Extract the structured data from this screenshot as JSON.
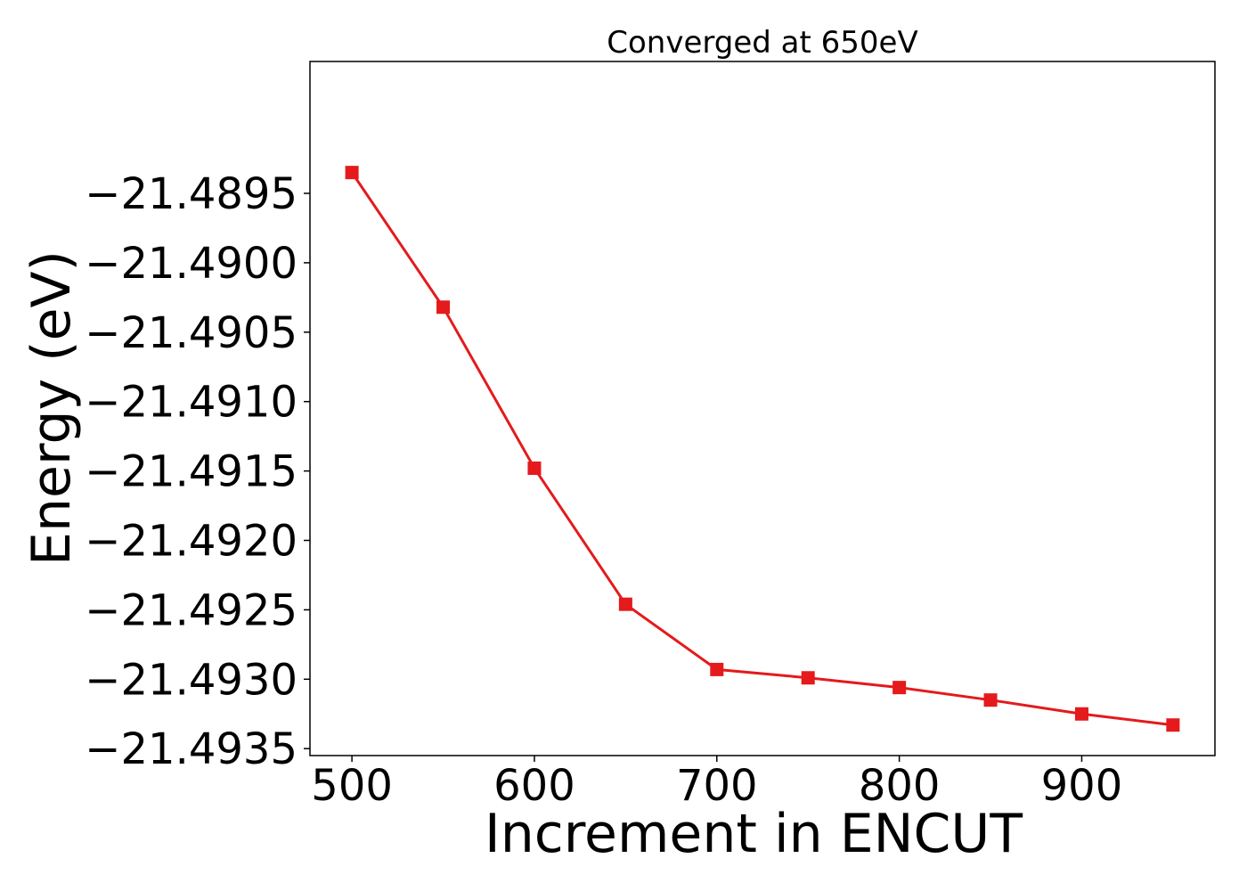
{
  "chart_data": {
    "type": "line",
    "title": "Converged at 650eV",
    "xlabel": "Increment in ENCUT",
    "ylabel": "Energy (eV)",
    "xlim": [
      477,
      973
    ],
    "ylim": [
      -21.49355,
      -21.48855
    ],
    "xticks": [
      500,
      600,
      700,
      800,
      900
    ],
    "xtick_labels": [
      "500",
      "600",
      "700",
      "800",
      "900"
    ],
    "yticks": [
      -21.4895,
      -21.49,
      -21.4905,
      -21.491,
      -21.4915,
      -21.492,
      -21.4925,
      -21.493,
      -21.4935
    ],
    "ytick_labels": [
      "−21.4895",
      "−21.4900",
      "−21.4905",
      "−21.4910",
      "−21.4915",
      "−21.4920",
      "−21.4925",
      "−21.4930",
      "−21.4935"
    ],
    "grid": false,
    "legend": "none",
    "color": "#e41a1c",
    "marker": "square",
    "x": [
      500,
      550,
      600,
      650,
      700,
      750,
      800,
      850,
      900,
      950
    ],
    "y": [
      -21.48935,
      -21.49032,
      -21.49148,
      -21.49246,
      -21.49293,
      -21.49299,
      -21.49306,
      -21.49315,
      -21.49325,
      -21.49333
    ]
  }
}
